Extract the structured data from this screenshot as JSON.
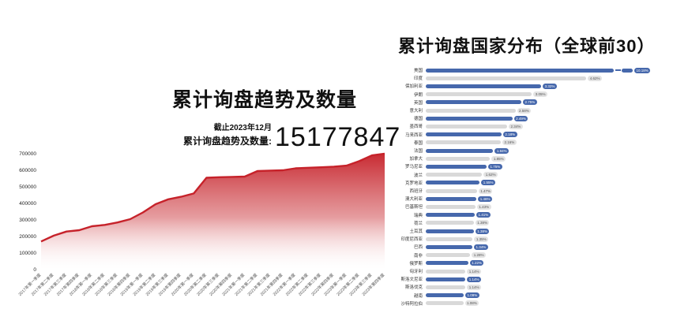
{
  "left_chart": {
    "title": "累计询盘趋势及数量",
    "as_of": "截止2023年12月",
    "total_label": "累计询盘趋势及数量:",
    "total": "15177847"
  },
  "right_chart": {
    "title": "累计询盘国家分布（全球前30）"
  },
  "colors": {
    "area_red": "#c6222a",
    "bar_blue": "#4668ac",
    "bar_gray": "#d9d9d9",
    "badge_gray_bg": "#e3e3e3",
    "badge_dark_text": "#555555"
  },
  "chart_data": [
    {
      "type": "area",
      "title": "累计询盘趋势及数量",
      "xlabel": "",
      "ylabel": "",
      "ylim": [
        0,
        700000
      ],
      "yticks": [
        0,
        100000,
        200000,
        300000,
        400000,
        500000,
        600000,
        700000
      ],
      "grid": false,
      "legend": "none",
      "annotation": {
        "as_of": "截止2023年12月",
        "label": "累计询盘趋势及数量:",
        "value": 15177847
      },
      "x": [
        "2017年第一季度",
        "2017年第二季度",
        "2017年第三季度",
        "2017年第四季度",
        "2018年第一季度",
        "2018年第二季度",
        "2018年第三季度",
        "2018年第四季度",
        "2019年第一季度",
        "2019年第二季度",
        "2019年第三季度",
        "2019年第四季度",
        "2020年第一季度",
        "2020年第二季度",
        "2020年第三季度",
        "2020年第四季度",
        "2021年第一季度",
        "2021年第二季度",
        "2021年第三季度",
        "2021年第四季度",
        "2022年第一季度",
        "2022年第二季度",
        "2022年第三季度",
        "2022年第四季度",
        "2023年第一季度",
        "2023年第二季度",
        "2023年第三季度",
        "2023年第四季度"
      ],
      "values": [
        170000,
        205000,
        230000,
        238000,
        262000,
        270000,
        285000,
        305000,
        345000,
        395000,
        425000,
        440000,
        460000,
        555000,
        558000,
        560000,
        562000,
        595000,
        598000,
        600000,
        612000,
        615000,
        618000,
        622000,
        628000,
        655000,
        690000,
        700000
      ]
    },
    {
      "type": "bar",
      "orientation": "horizontal",
      "title": "累计询盘国家分布（全球前30）",
      "legend": "none",
      "categories": [
        "美国",
        "印度",
        "保加利亚",
        "伊朗",
        "英国",
        "意大利",
        "德国",
        "墨西哥",
        "马来西亚",
        "泰国",
        "法国",
        "加拿大",
        "罗马尼亚",
        "波兰",
        "克罗地亚",
        "西班牙",
        "澳大利亚",
        "巴基斯坦",
        "瑞典",
        "荷兰",
        "土耳其",
        "印度尼西亚",
        "巴西",
        "南非",
        "俄罗斯",
        "匈牙利",
        "斯洛文尼亚",
        "斯洛伐克",
        "越南",
        "沙特阿拉伯"
      ],
      "values": [
        10.18,
        4.62,
        3.32,
        3.05,
        2.75,
        2.58,
        2.49,
        2.34,
        2.18,
        2.16,
        1.94,
        1.85,
        1.75,
        1.62,
        1.55,
        1.47,
        1.46,
        1.43,
        1.41,
        1.38,
        1.38,
        1.35,
        1.34,
        1.28,
        1.22,
        1.14,
        1.14,
        1.14,
        1.09,
        1.08
      ],
      "labels": [
        "10.18%",
        "4.62%",
        "3.32%",
        "3.05%",
        "2.75%",
        "2.58%",
        "2.49%",
        "2.34%",
        "2.18%",
        "2.16%",
        "1.94%",
        "1.85%",
        "1.75%",
        "1.62%",
        "1.55%",
        "1.47%",
        "1.46%",
        "1.43%",
        "1.41%",
        "1.38%",
        "1.38%",
        "1.35%",
        "1.34%",
        "1.28%",
        "1.22%",
        "1.14%",
        "1.14%",
        "1.14%",
        "1.09%",
        "1.08%"
      ]
    }
  ]
}
